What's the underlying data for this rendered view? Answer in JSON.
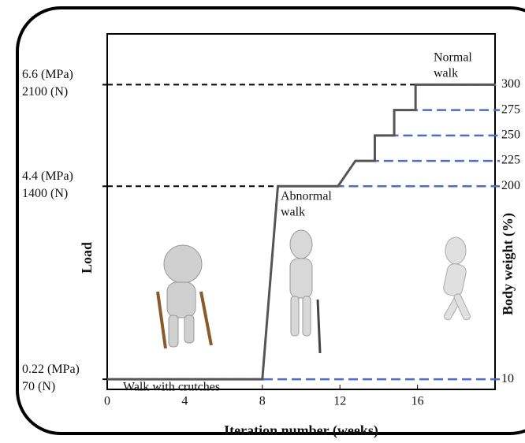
{
  "chart_data": {
    "type": "line",
    "xlabel": "Iteration number (weeks)",
    "ylabel": "Load",
    "y2label": "Body weight (%)",
    "xlim": [
      0,
      20
    ],
    "xticks": [
      0,
      4,
      8,
      12,
      16
    ],
    "ylim": [
      0,
      2450
    ],
    "yticks": [
      {
        "value": 70,
        "label": "70 (N)"
      },
      {
        "value": 1400,
        "label": "1400 (N)"
      },
      {
        "value": 2100,
        "label": "2100 (N)"
      }
    ],
    "ytick_stress_labels": [
      "0.22 (MPa)",
      "4.4 (MPa)",
      "6.6 (MPa)"
    ],
    "y2lim": [
      0,
      350
    ],
    "y2ticks": [
      10,
      200,
      225,
      250,
      275,
      300
    ],
    "series": [
      {
        "color": "#555555",
        "axis": "y2",
        "x": [
          0,
          8,
          8.8,
          11.9,
          12.8,
          13.8,
          13.8,
          14.8,
          14.8,
          15.9,
          15.9,
          20
        ],
        "values": [
          10,
          10,
          200,
          200,
          225,
          225,
          250,
          250,
          275,
          275,
          300,
          300
        ]
      }
    ],
    "left_reference_color": "#000000",
    "right_reference_color": "#4a6fc4",
    "annotations": {
      "normal_walk": [
        "Normal",
        "walk"
      ],
      "abnormal_walk": [
        "Abnormal",
        "walk"
      ],
      "crutches": "Walk with crutches"
    }
  }
}
